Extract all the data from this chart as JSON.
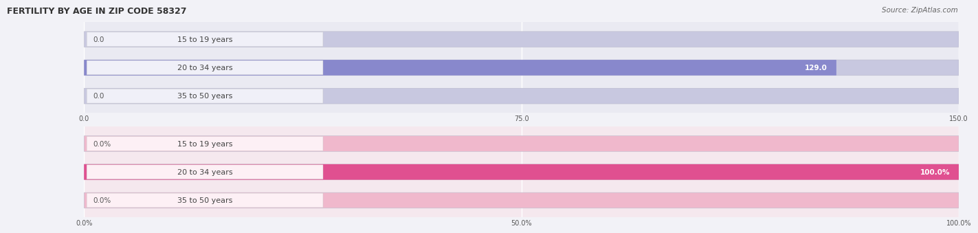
{
  "title": "FERTILITY BY AGE IN ZIP CODE 58327",
  "source": "Source: ZipAtlas.com",
  "top_chart": {
    "categories": [
      "15 to 19 years",
      "20 to 34 years",
      "35 to 50 years"
    ],
    "values": [
      0.0,
      129.0,
      0.0
    ],
    "max_value": 150.0,
    "bar_color": "#8888cc",
    "bar_bg_color": "#c8c8e0",
    "chart_bg_color": "#eaeaf2",
    "label_bg_color": "#f0f0f8",
    "xticks": [
      0.0,
      75.0,
      150.0
    ]
  },
  "bottom_chart": {
    "categories": [
      "15 to 19 years",
      "20 to 34 years",
      "35 to 50 years"
    ],
    "values": [
      0.0,
      100.0,
      0.0
    ],
    "max_value": 100.0,
    "bar_color": "#e05090",
    "bar_bg_color": "#f0b8cc",
    "chart_bg_color": "#f5e8ee",
    "label_bg_color": "#fdf0f5",
    "xticks": [
      0.0,
      50.0,
      100.0
    ],
    "xtick_labels": [
      "0.0%",
      "50.0%",
      "100.0%"
    ]
  },
  "fig_bg_color": "#f2f2f7",
  "title_fontsize": 9,
  "source_fontsize": 7.5,
  "label_fontsize": 8,
  "value_fontsize": 7.5,
  "grid_color": "#ffffff"
}
